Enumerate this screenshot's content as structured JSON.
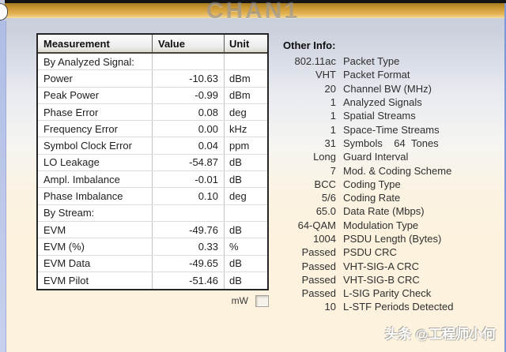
{
  "header": {
    "title": "CHAN1"
  },
  "table": {
    "columns": [
      "Measurement",
      "Value",
      "Unit"
    ],
    "rows": [
      {
        "m": "By Analyzed Signal:",
        "v": "",
        "u": ""
      },
      {
        "m": "Power",
        "v": "-10.63",
        "u": "dBm"
      },
      {
        "m": "Peak Power",
        "v": "-0.99",
        "u": "dBm"
      },
      {
        "m": "Phase Error",
        "v": "0.08",
        "u": "deg"
      },
      {
        "m": "Frequency Error",
        "v": "0.00",
        "u": "kHz"
      },
      {
        "m": "Symbol Clock Error",
        "v": "0.04",
        "u": "ppm"
      },
      {
        "m": "LO Leakage",
        "v": "-54.87",
        "u": "dB"
      },
      {
        "m": "Ampl. Imbalance",
        "v": "-0.01",
        "u": "dB"
      },
      {
        "m": "Phase Imbalance",
        "v": "0.10",
        "u": "deg"
      },
      {
        "m": "By Stream:",
        "v": "",
        "u": ""
      },
      {
        "m": "EVM",
        "v": "-49.76",
        "u": "dB"
      },
      {
        "m": "EVM (%)",
        "v": "0.33",
        "u": "%"
      },
      {
        "m": "EVM Data",
        "v": "-49.65",
        "u": "dB"
      },
      {
        "m": "EVM Pilot",
        "v": "-51.46",
        "u": "dB"
      }
    ],
    "mw_label": "mW",
    "mw_checked": false
  },
  "other_info": {
    "title": "Other Info:",
    "rows": [
      {
        "value": "802.11ac",
        "label": "Packet Type"
      },
      {
        "value": "VHT",
        "label": "Packet Format"
      },
      {
        "value": "20",
        "label": "Channel BW (MHz)"
      },
      {
        "value": "1",
        "label": "Analyzed Signals"
      },
      {
        "value": "1",
        "label": "Spatial Streams"
      },
      {
        "value": "1",
        "label": "Space-Time Streams"
      },
      {
        "value": "31",
        "label": "Symbols    64  Tones"
      },
      {
        "value": "Long",
        "label": "Guard Interval"
      },
      {
        "value": "7",
        "label": "Mod. & Coding Scheme"
      },
      {
        "value": "BCC",
        "label": "Coding Type"
      },
      {
        "value": "5/6",
        "label": "Coding Rate"
      },
      {
        "value": "65.0",
        "label": "Data Rate (Mbps)"
      },
      {
        "value": "64-QAM",
        "label": "Modulation Type"
      },
      {
        "value": "1004",
        "label": "PSDU Length (Bytes)"
      },
      {
        "value": "Passed",
        "label": "PSDU CRC"
      },
      {
        "value": "Passed",
        "label": "VHT-SIG-A CRC"
      },
      {
        "value": "Passed",
        "label": "VHT-SIG-B CRC"
      },
      {
        "value": "Passed",
        "label": "L-SIG Parity Check"
      },
      {
        "value": "10",
        "label": "L-STF Periods Detected"
      }
    ]
  },
  "watermark": "头条 @工程师小何",
  "colors": {
    "accent_orange": "#d9a33c",
    "top_bar_black": "#141414",
    "left_strip_blue": "#b4c1e7",
    "right_edge_blue": "#7e97d8",
    "background_top": "#c5cbd9",
    "background_bottom": "#fcf2de",
    "table_border": "#262626",
    "title_gray": "#9aa0ac"
  }
}
